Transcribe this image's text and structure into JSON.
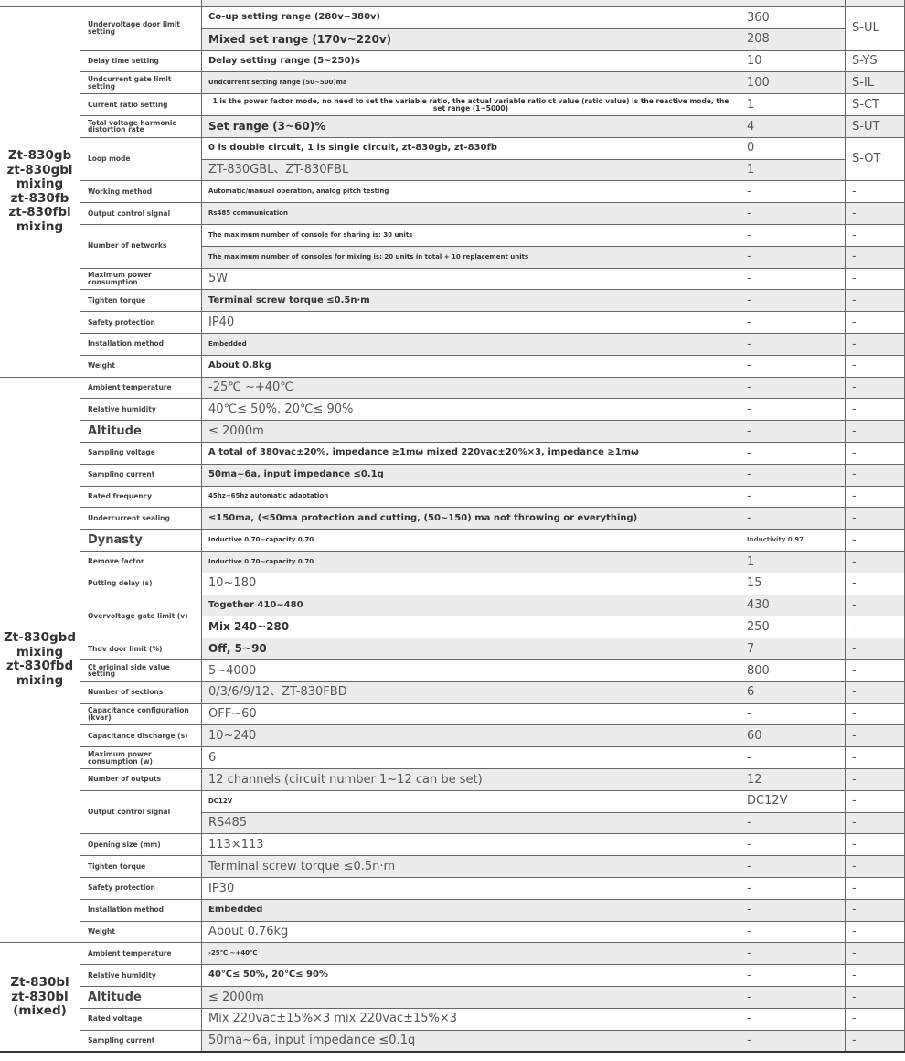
{
  "groups": [
    {
      "label_lines": [
        "Zt-830gb",
        "zt-830gbl",
        "mixing",
        "zt-830fb",
        "zt-830fbl",
        "mixing"
      ],
      "params": [
        {
          "name": "Undervoltage door limit setting",
          "code": "S-UL",
          "entries": [
            {
              "desc": "Co-up setting range (280v~380v)",
              "value": 360
            },
            {
              "desc": "Mixed set range (170v~220v)",
              "value": 208
            }
          ]
        },
        {
          "name": "Delay time setting",
          "entries": [
            {
              "desc": "Delay setting range (5~250)s",
              "value": 10,
              "code": "S-YS"
            }
          ]
        },
        {
          "name": "Undcurrent gate limit setting",
          "entries": [
            {
              "desc": "Undcurrent setting range (50~500)ma",
              "value": 100,
              "code": "S-IL"
            }
          ]
        },
        {
          "name": "Current ratio setting",
          "entries": [
            {
              "desc": "1 is the power factor mode, no need to set the variable ratio, the actual variable ratio ct value (ratio value) is the reactive mode, the set range (1~5000)",
              "value": 1,
              "code": "S-CT"
            }
          ]
        },
        {
          "name": "Total voltage harmonic distortion rate",
          "entries": [
            {
              "desc": "Set range (3~60)%",
              "value": 4,
              "code": "S-UT"
            }
          ]
        },
        {
          "name": "Loop mode",
          "code": "S-OT",
          "entries": [
            {
              "desc": "0 is double circuit, 1 is single circuit, zt-830gb, zt-830fb",
              "value": 0
            },
            {
              "desc": "ZT-830GBL、ZT-830FBL",
              "value": 1
            }
          ]
        },
        {
          "name": "Working method",
          "entries": [
            {
              "desc": "Automatic/manual operation, analog pitch testing",
              "value": "-",
              "code": "-"
            }
          ]
        },
        {
          "name": "Output control signal",
          "entries": [
            {
              "desc": "Rs485 communication",
              "value": "-",
              "code": "-"
            }
          ]
        },
        {
          "name": "Number of networks",
          "entries": [
            {
              "desc": "The maximum number of console for sharing is: 30 units",
              "value": "-",
              "code": "-"
            },
            {
              "desc": "The maximum number of consoles for mixing is: 20 units in total + 10 replacement units",
              "value": "-",
              "code": "-"
            }
          ]
        },
        {
          "name": "Maximum power consumption",
          "entries": [
            {
              "desc": "5W",
              "value": "-",
              "code": "-"
            }
          ]
        },
        {
          "name": "Tighten torque",
          "entries": [
            {
              "desc": "Terminal screw torque ≤0.5n·m",
              "value": "-",
              "code": "-"
            }
          ]
        },
        {
          "name": "Safety protection",
          "entries": [
            {
              "desc": "IP40",
              "value": "-",
              "code": "-"
            }
          ]
        },
        {
          "name": "Installation method",
          "entries": [
            {
              "desc": "Embedded",
              "value": "-",
              "code": "-"
            }
          ]
        },
        {
          "name": "Weight",
          "entries": [
            {
              "desc": "About 0.8kg",
              "value": "-",
              "code": "-"
            }
          ]
        }
      ]
    },
    {
      "label_lines": [
        "Zt-830gbd",
        "mixing",
        "zt-830fbd",
        "mixing"
      ],
      "params": [
        {
          "name": "Ambient temperature",
          "entries": [
            {
              "desc": "-25℃ ~+40℃",
              "value": "-",
              "code": "-"
            }
          ]
        },
        {
          "name": "Relative humidity",
          "entries": [
            {
              "desc": "40℃≤ 50%, 20℃≤ 90%",
              "value": "-",
              "code": "-"
            }
          ]
        },
        {
          "name": "Altitude",
          "entries": [
            {
              "desc": "≤ 2000m",
              "value": "-",
              "code": "-"
            }
          ]
        },
        {
          "name": "Sampling voltage",
          "entries": [
            {
              "desc": "A total of 380vac±20%, impedance ≥1mω mixed 220vac±20%×3, impedance ≥1mω",
              "value": "-",
              "code": "-"
            }
          ]
        },
        {
          "name": "Sampling current",
          "entries": [
            {
              "desc": "50ma~6a, input impedance ≤0.1q",
              "value": "-",
              "code": "-"
            }
          ]
        },
        {
          "name": "Rated frequency",
          "entries": [
            {
              "desc": "45hz~65hz automatic adaptation",
              "value": "-",
              "code": "-"
            }
          ]
        },
        {
          "name": "Undercurrent sealing",
          "entries": [
            {
              "desc": "≤150ma, (≤50ma protection and cutting, (50~150) ma not throwing or everything)",
              "value": "-",
              "code": "-"
            }
          ]
        },
        {
          "name": "Dynasty",
          "entries": [
            {
              "desc": "Inductive 0.70~capacity 0.70",
              "value": "Inductivity 0.97",
              "code": "-"
            }
          ]
        },
        {
          "name": "Remove factor",
          "entries": [
            {
              "desc": "Inductive 0.70~capacity 0.70",
              "value": 1,
              "code": "-"
            }
          ]
        },
        {
          "name": "Putting delay (s)",
          "entries": [
            {
              "desc": "10~180",
              "value": 15,
              "code": "-"
            }
          ]
        },
        {
          "name": "Overvoltage gate limit (v)",
          "entries": [
            {
              "desc": "Together 410~480",
              "value": 430,
              "code": "-"
            },
            {
              "desc": "Mix 240~280",
              "value": 250,
              "code": "-"
            }
          ]
        },
        {
          "name": "Thdv door limit (%)",
          "entries": [
            {
              "desc": "Off, 5~90",
              "value": 7,
              "code": "-"
            }
          ]
        },
        {
          "name": "Ct original side value setting",
          "entries": [
            {
              "desc": "5~4000",
              "value": 800,
              "code": "-"
            }
          ]
        },
        {
          "name": "Number of sections",
          "entries": [
            {
              "desc": "0/3/6/9/12、ZT-830FBD",
              "value": 6,
              "code": "-"
            }
          ]
        },
        {
          "name": "Capacitance configuration (kvar)",
          "entries": [
            {
              "desc": "OFF~60",
              "value": "-",
              "code": "-"
            }
          ]
        },
        {
          "name": "Capacitance discharge (s)",
          "entries": [
            {
              "desc": "10~240",
              "value": 60,
              "code": "-"
            }
          ]
        },
        {
          "name": "Maximum power consumption (w)",
          "entries": [
            {
              "desc": "6",
              "value": "-",
              "code": "-"
            }
          ]
        },
        {
          "name": "Number of outputs",
          "entries": [
            {
              "desc": "12 channels (circuit number 1~12 can be set)",
              "value": 12,
              "code": "-"
            }
          ]
        },
        {
          "name": "Output control signal",
          "entries": [
            {
              "desc": "DC12V",
              "value": "DC12V",
              "code": "-"
            },
            {
              "desc": "RS485",
              "value": "-",
              "code": "-"
            }
          ]
        },
        {
          "name": "Opening size (mm)",
          "entries": [
            {
              "desc": "113×113",
              "value": "-",
              "code": "-"
            }
          ]
        },
        {
          "name": "Tighten torque",
          "entries": [
            {
              "desc": "Terminal screw torque ≤0.5n·m",
              "value": "-",
              "code": "-"
            }
          ]
        },
        {
          "name": "Safety protection",
          "entries": [
            {
              "desc": "IP30",
              "value": "-",
              "code": "-"
            }
          ]
        },
        {
          "name": "Installation method",
          "entries": [
            {
              "desc": "Embedded",
              "value": "-",
              "code": "-"
            }
          ]
        },
        {
          "name": "Weight",
          "entries": [
            {
              "desc": "About 0.76kg",
              "value": "-",
              "code": "-"
            }
          ]
        }
      ]
    },
    {
      "label_lines": [
        "Zt-830bl",
        "zt-830bl",
        "(mixed)"
      ],
      "params": [
        {
          "name": "Ambient temperature",
          "entries": [
            {
              "desc": "-25℃ ~+40℃",
              "value": "-",
              "code": "-"
            }
          ]
        },
        {
          "name": "Relative humidity",
          "entries": [
            {
              "desc": "40℃≤ 50%, 20℃≤ 90%",
              "value": "-",
              "code": "-"
            }
          ]
        },
        {
          "name": "Altitude",
          "entries": [
            {
              "desc": "≤ 2000m",
              "value": "-",
              "code": "-"
            }
          ]
        },
        {
          "name": "Rated voltage",
          "entries": [
            {
              "desc": "Mix 220vac±15%×3 mix 220vac±15%×3",
              "value": "-",
              "code": "-"
            }
          ]
        },
        {
          "name": "Sampling current",
          "entries": [
            {
              "desc": "50ma~6a, input impedance ≤0.1q",
              "value": "-",
              "code": "-"
            }
          ]
        }
      ]
    }
  ]
}
